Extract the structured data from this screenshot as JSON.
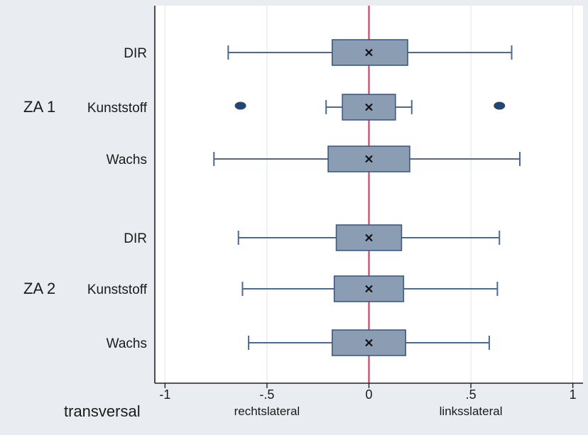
{
  "chart_data": {
    "type": "boxplot",
    "orientation": "horizontal",
    "xlim": [
      -1.05,
      1.05
    ],
    "x_ticks": [
      {
        "value": -1,
        "label": "-1"
      },
      {
        "value": -0.5,
        "label": "-.5"
      },
      {
        "value": 0,
        "label": "0"
      },
      {
        "value": 0.5,
        "label": ".5"
      },
      {
        "value": 1,
        "label": "1"
      }
    ],
    "x_axis_label": "transversal",
    "x_side_labels": {
      "left": "rechtslateral",
      "right": "linksslateral"
    },
    "reference_line": {
      "value": 0,
      "color": "#d0435a"
    },
    "vertical_grid": true,
    "box_color": "#8b9db3",
    "box_stroke": "#3d5a80",
    "whisker_color": "#4a6a91",
    "outlier_color": "#24466f",
    "median_marker": "x",
    "groups": [
      {
        "name": "ZA 1",
        "rows": [
          {
            "label": "DIR",
            "whisker_low": -0.69,
            "q1": -0.18,
            "median": 0.0,
            "q3": 0.19,
            "whisker_high": 0.7,
            "outliers": []
          },
          {
            "label": "Kunststoff",
            "whisker_low": -0.21,
            "q1": -0.13,
            "median": 0.0,
            "q3": 0.13,
            "whisker_high": 0.21,
            "outliers": [
              -0.63,
              0.64
            ]
          },
          {
            "label": "Wachs",
            "whisker_low": -0.76,
            "q1": -0.2,
            "median": 0.0,
            "q3": 0.2,
            "whisker_high": 0.74,
            "outliers": []
          }
        ]
      },
      {
        "name": "ZA 2",
        "rows": [
          {
            "label": "DIR",
            "whisker_low": -0.64,
            "q1": -0.16,
            "median": 0.0,
            "q3": 0.16,
            "whisker_high": 0.64,
            "outliers": []
          },
          {
            "label": "Kunststoff",
            "whisker_low": -0.62,
            "q1": -0.17,
            "median": 0.0,
            "q3": 0.17,
            "whisker_high": 0.63,
            "outliers": []
          },
          {
            "label": "Wachs",
            "whisker_low": -0.59,
            "q1": -0.18,
            "median": 0.0,
            "q3": 0.18,
            "whisker_high": 0.59,
            "outliers": []
          }
        ]
      }
    ]
  }
}
